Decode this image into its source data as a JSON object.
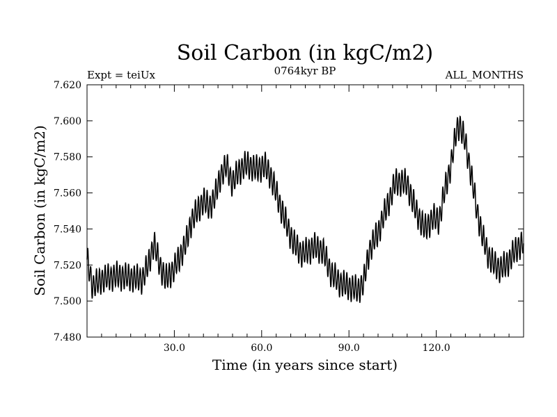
{
  "chart_data": {
    "type": "line",
    "title": "Soil Carbon (in kgC/m2)",
    "subtitle_left": "Expt = teiUx",
    "subtitle_center": "0764kyr BP",
    "subtitle_right": "ALL_MONTHS",
    "xlabel": "Time (in years since start)",
    "ylabel": "Soil Carbon (in kgC/m2)",
    "xlim": [
      0,
      150
    ],
    "ylim": [
      7.48,
      7.62
    ],
    "x_ticks": [
      30,
      60,
      90,
      120
    ],
    "x_tick_labels": [
      "30.0",
      "60.0",
      "90.0",
      "120.0"
    ],
    "y_ticks": [
      7.48,
      7.5,
      7.52,
      7.54,
      7.56,
      7.58,
      7.6,
      7.62
    ],
    "y_tick_labels": [
      "7.480",
      "7.500",
      "7.520",
      "7.540",
      "7.560",
      "7.580",
      "7.600",
      "7.620"
    ],
    "series": [
      {
        "name": "Soil Carbon",
        "color": "#000000",
        "trend_x": [
          0,
          2,
          5,
          10,
          15,
          19,
          21,
          23,
          25,
          27,
          30,
          34,
          36,
          38,
          40,
          42,
          44,
          46,
          48,
          50,
          52,
          55,
          58,
          61,
          63,
          65,
          68,
          71,
          74,
          78,
          81,
          84,
          87,
          90,
          93,
          95,
          97,
          100,
          103,
          106,
          108,
          110,
          113,
          116,
          119,
          121,
          123,
          125,
          127,
          128,
          130,
          132,
          134,
          136,
          138,
          140,
          142,
          144,
          146,
          148,
          150
        ],
        "trend_y": [
          7.523,
          7.508,
          7.512,
          7.514,
          7.513,
          7.512,
          7.52,
          7.532,
          7.52,
          7.512,
          7.518,
          7.532,
          7.545,
          7.55,
          7.556,
          7.552,
          7.558,
          7.57,
          7.575,
          7.565,
          7.572,
          7.576,
          7.573,
          7.575,
          7.57,
          7.56,
          7.545,
          7.532,
          7.526,
          7.53,
          7.528,
          7.515,
          7.51,
          7.508,
          7.506,
          7.51,
          7.528,
          7.538,
          7.552,
          7.566,
          7.566,
          7.565,
          7.55,
          7.54,
          7.546,
          7.545,
          7.562,
          7.575,
          7.595,
          7.598,
          7.588,
          7.57,
          7.55,
          7.535,
          7.525,
          7.52,
          7.518,
          7.52,
          7.525,
          7.53,
          7.532
        ],
        "oscillation_amplitude": 0.0085,
        "samples_per_year": 12
      }
    ]
  }
}
